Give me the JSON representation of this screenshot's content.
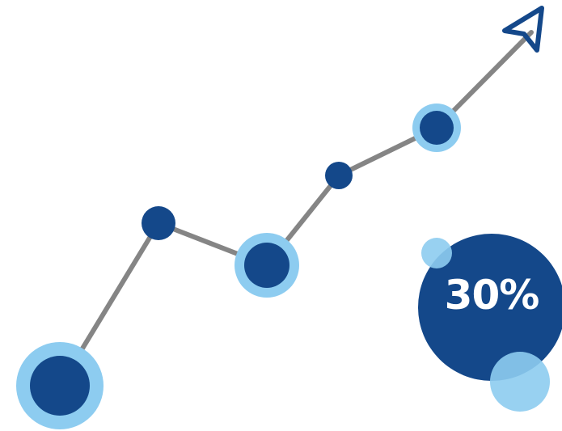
{
  "badge": {
    "value_label": "30%"
  },
  "colors": {
    "dark_blue": "#14488A",
    "light_blue": "#8DCCF0",
    "line_gray": "#858585",
    "background": "#FFFFFF"
  },
  "icons": {
    "arrow": "navigation-arrow-icon"
  }
}
